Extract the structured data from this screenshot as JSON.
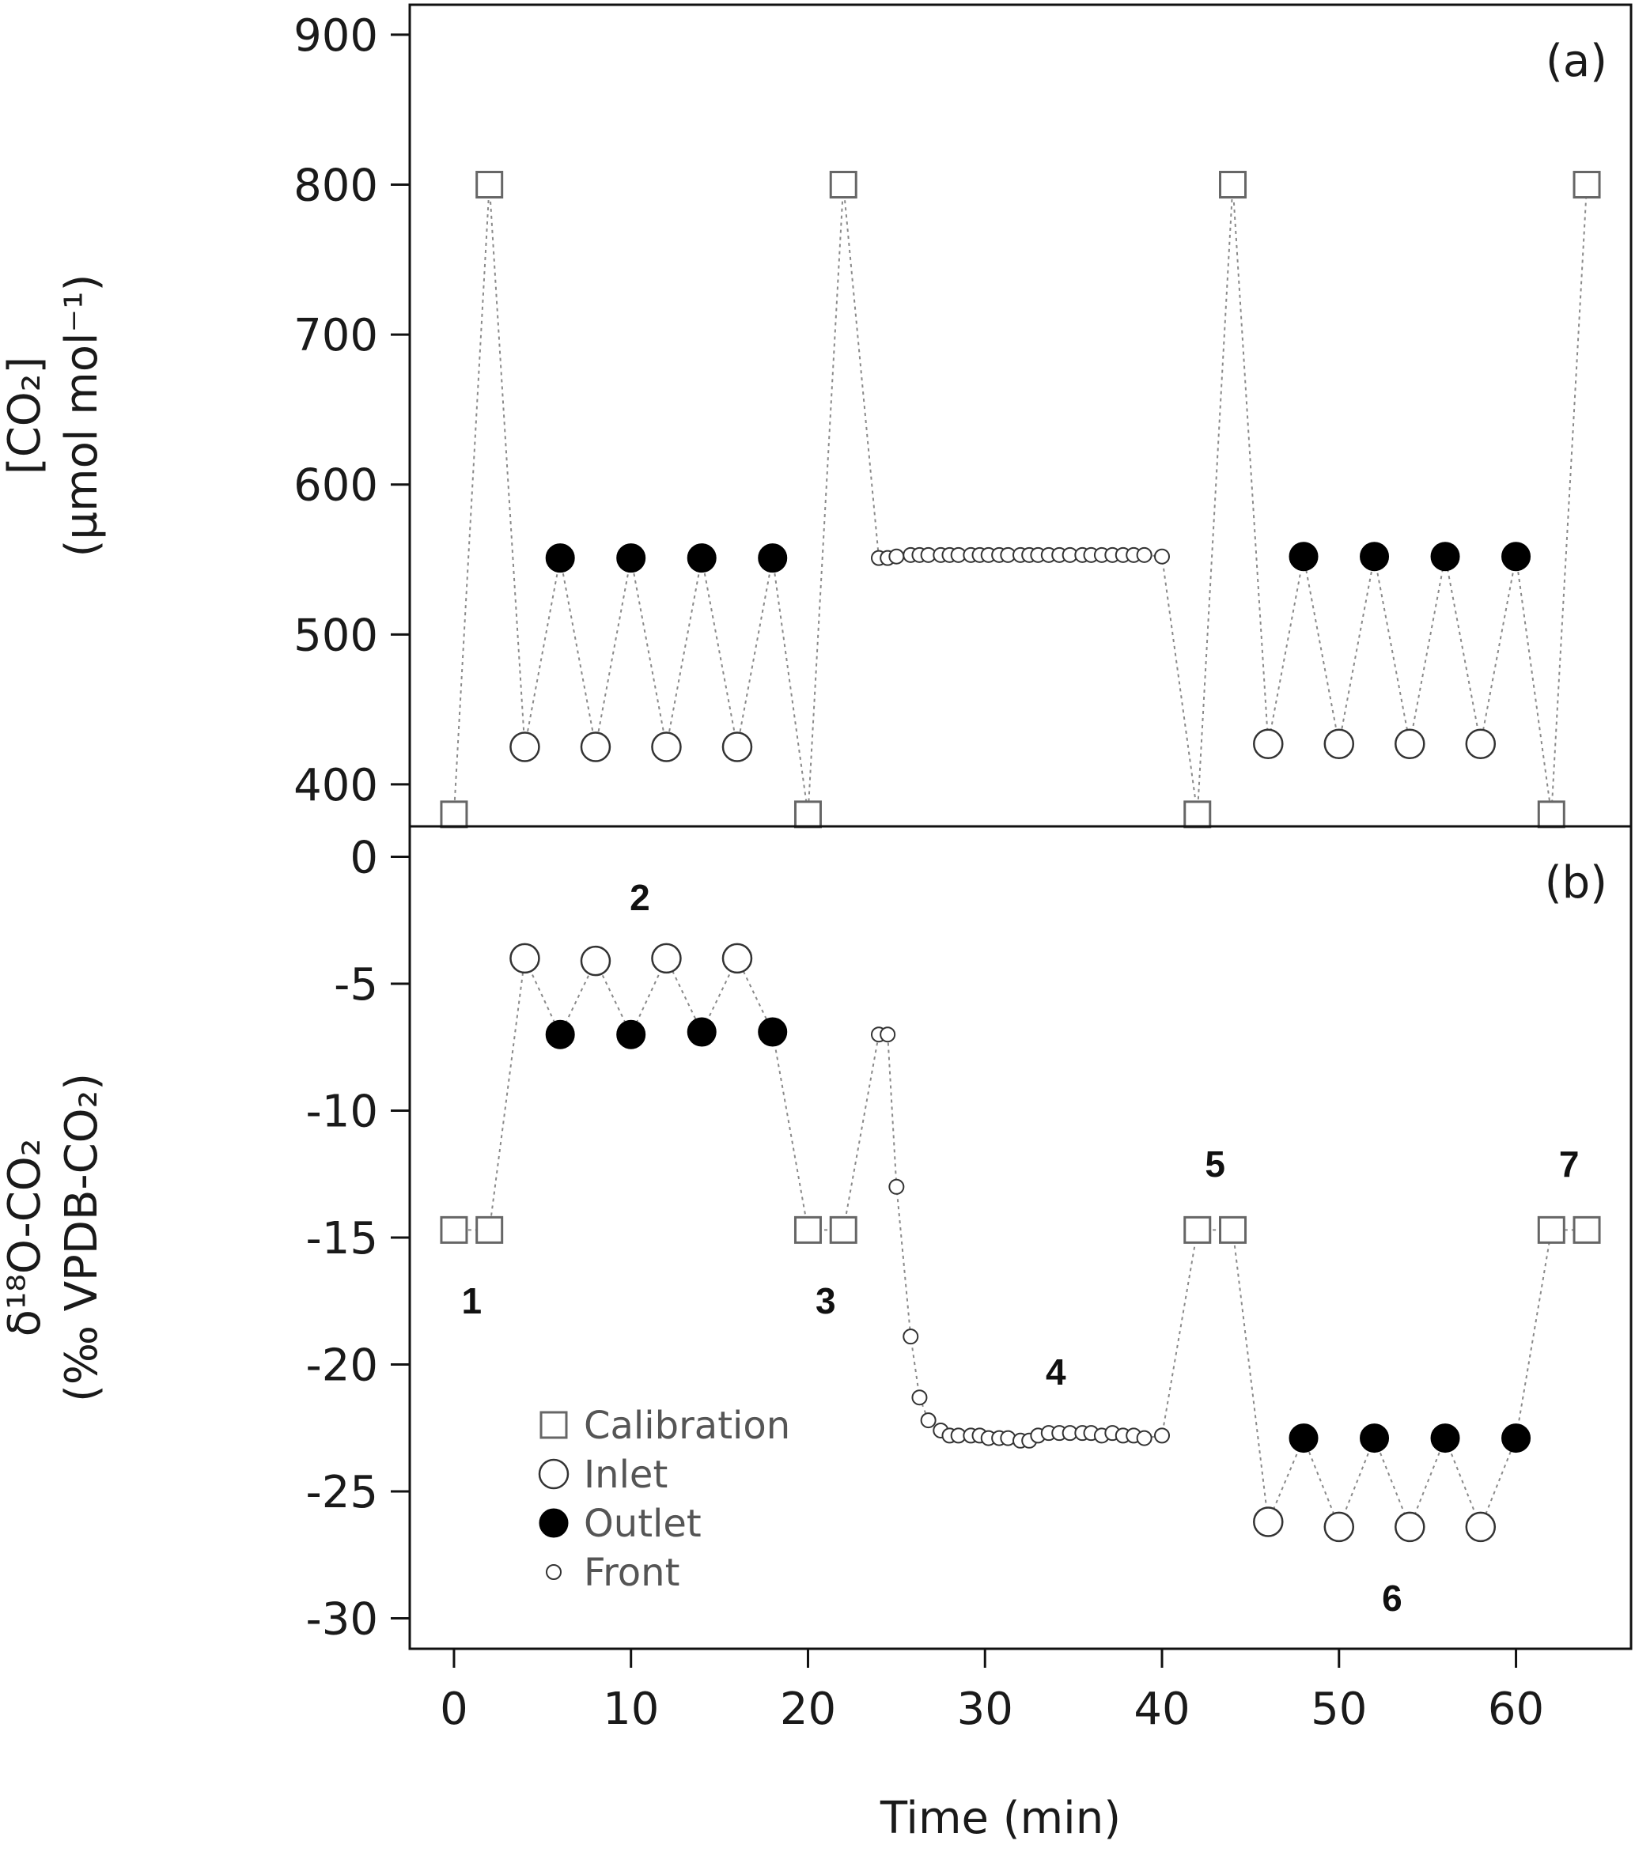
{
  "chart_data": [
    {
      "type": "scatter",
      "panel_label": "(a)",
      "ylabel_lines": [
        "[CO₂]",
        "(µmol mol⁻¹)"
      ],
      "xlabel": "",
      "ylim": [
        372,
        920
      ],
      "xlim": [
        -2.5,
        66.5
      ],
      "yticks": [
        400,
        500,
        600,
        700,
        800,
        900
      ],
      "grid": false,
      "series": [
        {
          "key": "calibration",
          "marker": "square",
          "x": [
            0,
            2,
            20,
            22,
            42,
            44,
            62,
            64
          ],
          "y": [
            380,
            800,
            380,
            800,
            380,
            800,
            380,
            800
          ]
        },
        {
          "key": "inlet",
          "marker": "open-circle",
          "x": [
            4,
            8,
            12,
            16,
            46,
            50,
            54,
            58
          ],
          "y": [
            425,
            425,
            425,
            425,
            427,
            427,
            427,
            427
          ]
        },
        {
          "key": "outlet",
          "marker": "filled-circle",
          "x": [
            6,
            10,
            14,
            18,
            48,
            52,
            56,
            60
          ],
          "y": [
            551,
            551,
            551,
            551,
            552,
            552,
            552,
            552
          ]
        },
        {
          "key": "front",
          "marker": "small-circle",
          "x": [
            24,
            24.5,
            25,
            25.8,
            26.3,
            26.8,
            27.5,
            28,
            28.5,
            29.2,
            29.7,
            30.2,
            30.8,
            31.3,
            32,
            32.5,
            33,
            33.6,
            34.2,
            34.8,
            35.5,
            36,
            36.6,
            37.2,
            37.8,
            38.4,
            39,
            40
          ],
          "y": [
            551,
            551,
            552,
            553,
            553,
            553,
            553,
            553,
            553,
            553,
            553,
            553,
            553,
            553,
            553,
            553,
            553,
            553,
            553,
            553,
            553,
            553,
            553,
            553,
            553,
            553,
            553,
            552
          ]
        }
      ],
      "connection_order_x": [
        0,
        2,
        4,
        6,
        8,
        10,
        12,
        14,
        16,
        18,
        20,
        22,
        24,
        24.5,
        25,
        25.8,
        26.3,
        26.8,
        27.5,
        28,
        28.5,
        29.2,
        29.7,
        30.2,
        30.8,
        31.3,
        32,
        32.5,
        33,
        33.6,
        34.2,
        34.8,
        35.5,
        36,
        36.6,
        37.2,
        37.8,
        38.4,
        39,
        40,
        42,
        44,
        46,
        48,
        50,
        52,
        54,
        56,
        58,
        60,
        62,
        64
      ]
    },
    {
      "type": "scatter",
      "panel_label": "(b)",
      "ylabel_lines": [
        "δ¹⁸O-CO₂",
        "(‰ VPDB-CO₂)"
      ],
      "xlabel": "Time (min)",
      "ylim": [
        -31.2,
        1.2
      ],
      "xlim": [
        -2.5,
        66.5
      ],
      "yticks": [
        0,
        -5,
        -10,
        -15,
        -20,
        -25,
        -30
      ],
      "xticks": [
        0,
        10,
        20,
        30,
        40,
        50,
        60
      ],
      "grid": false,
      "series": [
        {
          "key": "calibration",
          "marker": "square",
          "x": [
            0,
            2,
            20,
            22,
            42,
            44,
            62,
            64
          ],
          "y": [
            -14.7,
            -14.7,
            -14.7,
            -14.7,
            -14.7,
            -14.7,
            -14.7,
            -14.7
          ]
        },
        {
          "key": "inlet",
          "marker": "open-circle",
          "x": [
            4,
            8,
            12,
            16,
            46,
            50,
            54,
            58
          ],
          "y": [
            -4.0,
            -4.1,
            -4.0,
            -4.0,
            -26.2,
            -26.4,
            -26.4,
            -26.4
          ]
        },
        {
          "key": "outlet",
          "marker": "filled-circle",
          "x": [
            6,
            10,
            14,
            18,
            48,
            52,
            56,
            60
          ],
          "y": [
            -7.0,
            -7.0,
            -6.9,
            -6.9,
            -22.9,
            -22.9,
            -22.9,
            -22.9
          ]
        },
        {
          "key": "front",
          "marker": "small-circle",
          "x": [
            24,
            24.5,
            25,
            25.8,
            26.3,
            26.8,
            27.5,
            28,
            28.5,
            29.2,
            29.7,
            30.2,
            30.8,
            31.3,
            32,
            32.5,
            33,
            33.6,
            34.2,
            34.8,
            35.5,
            36,
            36.6,
            37.2,
            37.8,
            38.4,
            39,
            40
          ],
          "y": [
            -7.0,
            -7.0,
            -13.0,
            -18.9,
            -21.3,
            -22.2,
            -22.6,
            -22.8,
            -22.8,
            -22.8,
            -22.8,
            -22.9,
            -22.9,
            -22.9,
            -23.0,
            -23.0,
            -22.8,
            -22.7,
            -22.7,
            -22.7,
            -22.7,
            -22.7,
            -22.8,
            -22.7,
            -22.8,
            -22.8,
            -22.9,
            -22.8
          ]
        }
      ],
      "connection_order_x": [
        0,
        2,
        4,
        6,
        8,
        10,
        12,
        14,
        16,
        18,
        20,
        22,
        24,
        24.5,
        25,
        25.8,
        26.3,
        26.8,
        27.5,
        28,
        28.5,
        29.2,
        29.7,
        30.2,
        30.8,
        31.3,
        32,
        32.5,
        33,
        33.6,
        34.2,
        34.8,
        35.5,
        36,
        36.6,
        37.2,
        37.8,
        38.4,
        39,
        40,
        42,
        44,
        46,
        48,
        50,
        52,
        54,
        56,
        58,
        60,
        62,
        64
      ],
      "annotations": [
        {
          "text": "1",
          "x": 1,
          "y": -17.5
        },
        {
          "text": "2",
          "x": 10.5,
          "y": -1.6
        },
        {
          "text": "3",
          "x": 21,
          "y": -17.5
        },
        {
          "text": "4",
          "x": 34,
          "y": -20.3
        },
        {
          "text": "5",
          "x": 43,
          "y": -12.1
        },
        {
          "text": "6",
          "x": 53,
          "y": -29.2
        },
        {
          "text": "7",
          "x": 63,
          "y": -12.1
        }
      ],
      "legend": {
        "placement": "bottom-left",
        "entries": [
          {
            "key": "calibration",
            "label": "Calibration",
            "marker": "square"
          },
          {
            "key": "inlet",
            "label": "Inlet",
            "marker": "open-circle"
          },
          {
            "key": "outlet",
            "label": "Outlet",
            "marker": "filled-circle"
          },
          {
            "key": "front",
            "label": "Front",
            "marker": "small-circle"
          }
        ]
      }
    }
  ],
  "colors": {
    "square_stroke": "#666666",
    "open_circle_stroke": "#333333",
    "filled_circle": "#000000",
    "connector": "#8a8a8a",
    "axis": "#111111"
  }
}
